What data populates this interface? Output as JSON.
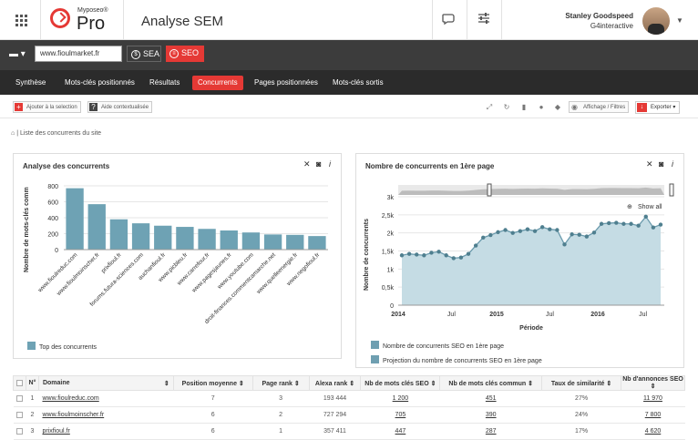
{
  "app": {
    "brand_small": "Myposeo®",
    "brand_big": "Pro",
    "page_title": "Analyse SEM"
  },
  "user": {
    "name": "Stanley Goodspeed",
    "org": "G4interactive"
  },
  "site_input": {
    "value": "www.fioulmarket.fr"
  },
  "mode_buttons": {
    "sea": "SEA",
    "seo": "SEO"
  },
  "nav": [
    "Synthèse",
    "Mots-clés positionnés",
    "Résultats",
    "Concurrents",
    "Pages positionnées",
    "Mots-clés sortis"
  ],
  "nav_active": "Concurrents",
  "toolbar": {
    "add": "Ajouter à la selection",
    "help": "Aide contextualisée",
    "display": "Affichage / Filtres",
    "export": "Exporter"
  },
  "breadcrumb": "| Liste des concurrents du site",
  "panel_left": {
    "title": "Analyse des concurrents",
    "legend": "Top des concurrents"
  },
  "panel_right": {
    "title": "Nombre de concurrents en 1ère page",
    "show_all": "Show all",
    "legend1": "Nombre de concurrents SEO en 1ère page",
    "legend2": "Projection du nombre de concurrents SEO en 1ère page"
  },
  "colors": {
    "accent": "#e53935",
    "bar": "#6ea2b4",
    "area": "#c5dce4",
    "line": "#6a9aac",
    "dark": "#3c3c3c",
    "nav": "#2b2b2b"
  },
  "chart_data": [
    {
      "type": "bar",
      "ylabel": "Nombre de mots-clés comm",
      "ylim": [
        0,
        800
      ],
      "yticks": [
        0,
        200,
        400,
        600,
        800
      ],
      "categories": [
        "www.fioulreduc.com",
        "www.fioulmoinscher.fr",
        "prixfioul.fr",
        "forums.futura-sciences.com",
        "auchanfioul.fr",
        "www.picbleu.fr",
        "www.carrefour.fr",
        "www.pagesjaunes.fr",
        "www.youtube.com",
        "droit-finances.commentcamarche.net",
        "www.quelleenergie.fr",
        "www.negofioul.fr"
      ],
      "series": [
        {
          "name": "Top des concurrents",
          "values": [
            770,
            570,
            380,
            330,
            300,
            285,
            260,
            240,
            215,
            190,
            185,
            170
          ]
        }
      ],
      "legend": "bottom-left"
    },
    {
      "type": "line",
      "ylabel": "Nombre de concurrents",
      "xlabel": "Période",
      "ylim": [
        0,
        3000
      ],
      "yticks": [
        0,
        500,
        1000,
        1500,
        2000,
        2500,
        3000
      ],
      "ytick_labels": [
        "0",
        "0,5k",
        "1k",
        "1,5k",
        "2k",
        "2,5k",
        "3k"
      ],
      "xticks": [
        2014,
        "Jul",
        2015,
        "Jul",
        2016,
        "Jul"
      ],
      "series": [
        {
          "name": "Nombre de concurrents SEO en 1ère page",
          "values": [
            1380,
            1420,
            1400,
            1380,
            1450,
            1480,
            1380,
            1300,
            1320,
            1420,
            1650,
            1870,
            1940,
            2020,
            2080,
            2000,
            2050,
            2100,
            2050,
            2160,
            2100,
            2080,
            1680,
            1960,
            1950,
            1900,
            2010,
            2250,
            2270,
            2280,
            2250,
            2250,
            2200,
            2450,
            2150,
            2230
          ]
        }
      ],
      "legend": "bottom-left"
    }
  ],
  "table": {
    "headers": [
      "N°",
      "Domaine",
      "Position moyenne",
      "Page rank",
      "Alexa rank",
      "Nb de mots clés SEO",
      "Nb de mots clés commun",
      "Taux de similarité",
      "Nb d'annonces SEO"
    ],
    "rows": [
      [
        "1",
        "www.fioulreduc.com",
        "7",
        "3",
        "193 444",
        "1 200",
        "451",
        "27%",
        "11 970"
      ],
      [
        "2",
        "www.fioulmoinscher.fr",
        "6",
        "2",
        "727 294",
        "705",
        "390",
        "24%",
        "7 800"
      ],
      [
        "3",
        "prixfioul.fr",
        "6",
        "1",
        "357 411",
        "447",
        "287",
        "17%",
        "4 620"
      ]
    ]
  }
}
